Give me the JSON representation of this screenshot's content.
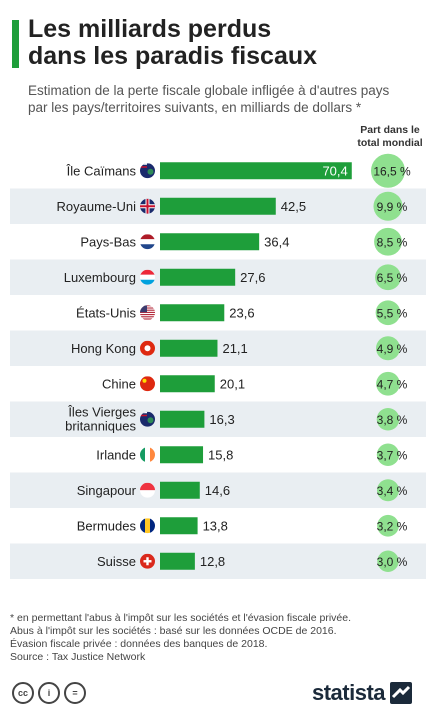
{
  "header": {
    "title_line1": "Les milliards perdus",
    "title_line2": "dans les paradis fiscaux",
    "subtitle_line1": "Estimation de la perte fiscale globale infligée à d'autres pays",
    "subtitle_line2": "par les pays/territoires suivants, en milliards de dollars *"
  },
  "share_header_line1": "Part dans le",
  "share_header_line2": "total mondial",
  "colors": {
    "bar": "#1e9e3a",
    "bubble": "#8fe08f",
    "row_shade": "#e9eef2",
    "accent": "#1e9e3a"
  },
  "chart_data": {
    "type": "bar",
    "orientation": "horizontal",
    "title": "Les milliards perdus dans les paradis fiscaux",
    "categories": [
      "Île Caïmans",
      "Royaume-Uni",
      "Pays-Bas",
      "Luxembourg",
      "États-Unis",
      "Hong Kong",
      "Chine",
      "Îles Vierges britanniques",
      "Irlande",
      "Singapour",
      "Bermudes",
      "Suisse"
    ],
    "category_lines": [
      [
        "Île Caïmans"
      ],
      [
        "Royaume-Uni"
      ],
      [
        "Pays-Bas"
      ],
      [
        "Luxembourg"
      ],
      [
        "États-Unis"
      ],
      [
        "Hong Kong"
      ],
      [
        "Chine"
      ],
      [
        "Îles Vierges",
        "britanniques"
      ],
      [
        "Irlande"
      ],
      [
        "Singapour"
      ],
      [
        "Bermudes"
      ],
      [
        "Suisse"
      ]
    ],
    "values": [
      70.4,
      42.5,
      36.4,
      27.6,
      23.6,
      21.1,
      20.1,
      16.3,
      15.8,
      14.6,
      13.8,
      12.8
    ],
    "value_labels": [
      "70,4",
      "42,5",
      "36,4",
      "27,6",
      "23,6",
      "21,1",
      "20,1",
      "16,3",
      "15,8",
      "14,6",
      "13,8",
      "12,8"
    ],
    "shares": [
      16.5,
      9.9,
      8.5,
      6.5,
      5.5,
      4.9,
      4.7,
      3.8,
      3.7,
      3.4,
      3.2,
      3.0
    ],
    "share_labels": [
      "16,5 %",
      "9,9 %",
      "8,5 %",
      "6,5 %",
      "5,5 %",
      "4,9 %",
      "4,7 %",
      "3,8 %",
      "3,7 %",
      "3,4 %",
      "3,2 %",
      "3,0 %"
    ],
    "flags": [
      "cayman-flag",
      "uk-flag",
      "netherlands-flag",
      "luxembourg-flag",
      "usa-flag",
      "hongkong-flag",
      "china-flag",
      "bvi-flag",
      "ireland-flag",
      "singapore-flag",
      "barbados-bermuda-flag",
      "switzerland-flag"
    ],
    "xlim": [
      0,
      75
    ],
    "grid": false
  },
  "footnotes": {
    "line1": "* en permettant l'abus à l'impôt sur les sociétés et l'évasion fiscale privée.",
    "line2": "Abus à l'impôt sur les sociétés : basé sur les données OCDE de 2016.",
    "line3": "Évasion fiscale privée : données des banques de 2018.",
    "line4": "Source : Tax Justice Network"
  },
  "license_icons": [
    "cc-icon",
    "by-icon",
    "equals-icon"
  ],
  "license_symbols": [
    "cc",
    "i",
    "="
  ],
  "logo": {
    "text": "statista"
  }
}
